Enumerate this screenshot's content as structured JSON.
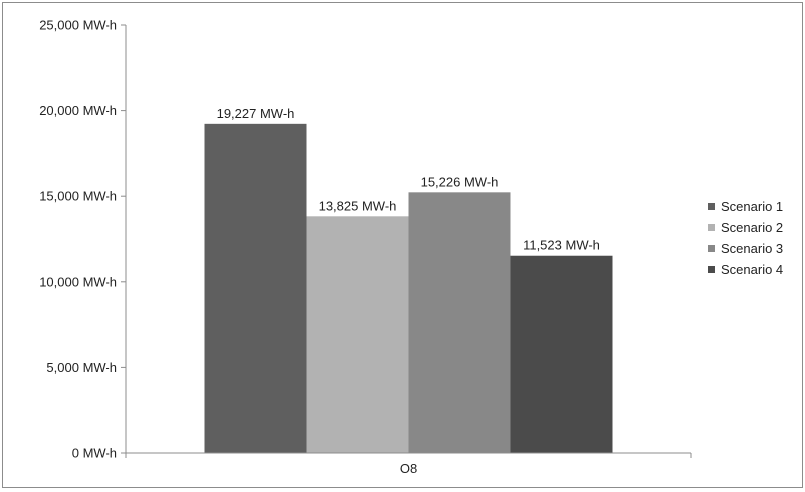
{
  "chart_data": {
    "type": "bar",
    "categories": [
      "O8"
    ],
    "series": [
      {
        "name": "Scenario 1",
        "values": [
          19227
        ],
        "label": "19,227 MW-h",
        "color": "#5f5f5f"
      },
      {
        "name": "Scenario 2",
        "values": [
          13825
        ],
        "label": "13,825 MW-h",
        "color": "#b2b2b2"
      },
      {
        "name": "Scenario 3",
        "values": [
          15226
        ],
        "label": "15,226 MW-h",
        "color": "#888888"
      },
      {
        "name": "Scenario 4",
        "values": [
          11523
        ],
        "label": "11,523 MW-h",
        "color": "#4b4b4b"
      }
    ],
    "ylim": [
      0,
      25000
    ],
    "yticks": [
      0,
      5000,
      10000,
      15000,
      20000,
      25000
    ],
    "ytick_labels": [
      "0 MW-h",
      "5,000 MW-h",
      "10,000 MW-h",
      "15,000 MW-h",
      "20,000 MW-h",
      "25,000 MW-h"
    ],
    "grid": false,
    "legend_position": "right",
    "title": "",
    "xlabel": "",
    "ylabel": ""
  }
}
